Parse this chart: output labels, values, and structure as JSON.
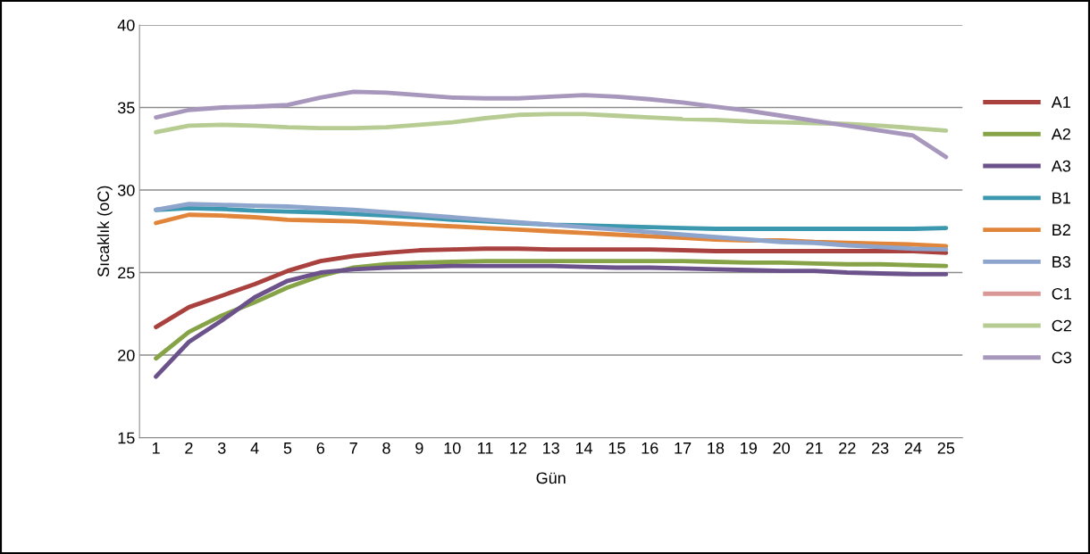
{
  "chart_data": {
    "type": "line",
    "xlabel": "Gün",
    "ylabel": "Sıcaklık (oC)",
    "categories": [
      "1",
      "2",
      "3",
      "4",
      "5",
      "6",
      "7",
      "8",
      "9",
      "10",
      "11",
      "12",
      "13",
      "14",
      "15",
      "16",
      "17",
      "18",
      "19",
      "20",
      "21",
      "22",
      "23",
      "24",
      "25"
    ],
    "ylim": [
      15,
      40
    ],
    "yticks": [
      15,
      20,
      25,
      30,
      35,
      40
    ],
    "grid": "y",
    "legend": "right",
    "marker": "none",
    "line_style": "solid",
    "series": [
      {
        "name": "A1",
        "color": "#a9413e",
        "values": [
          21.7,
          22.9,
          23.6,
          24.3,
          25.1,
          25.7,
          26.0,
          26.2,
          26.35,
          26.4,
          26.45,
          26.45,
          26.4,
          26.4,
          26.4,
          26.4,
          26.35,
          26.3,
          26.3,
          26.3,
          26.3,
          26.3,
          26.3,
          26.3,
          26.2
        ]
      },
      {
        "name": "A2",
        "color": "#87a347",
        "values": [
          19.8,
          21.4,
          22.4,
          23.2,
          24.1,
          24.8,
          25.3,
          25.5,
          25.6,
          25.65,
          25.7,
          25.7,
          25.7,
          25.7,
          25.7,
          25.7,
          25.7,
          25.65,
          25.6,
          25.6,
          25.55,
          25.5,
          25.5,
          25.45,
          25.4
        ]
      },
      {
        "name": "A3",
        "color": "#6b528a",
        "values": [
          18.7,
          20.8,
          22.1,
          23.5,
          24.5,
          25.0,
          25.2,
          25.3,
          25.35,
          25.4,
          25.4,
          25.4,
          25.4,
          25.35,
          25.3,
          25.3,
          25.25,
          25.2,
          25.15,
          25.1,
          25.1,
          25.0,
          24.95,
          24.9,
          24.9
        ]
      },
      {
        "name": "B1",
        "color": "#3c98ae",
        "values": [
          28.8,
          28.9,
          28.85,
          28.75,
          28.7,
          28.65,
          28.55,
          28.45,
          28.35,
          28.2,
          28.1,
          28.0,
          27.9,
          27.85,
          27.8,
          27.75,
          27.7,
          27.65,
          27.65,
          27.65,
          27.65,
          27.65,
          27.65,
          27.65,
          27.7
        ]
      },
      {
        "name": "B2",
        "color": "#e0853a",
        "values": [
          28.0,
          28.5,
          28.45,
          28.35,
          28.2,
          28.15,
          28.1,
          28.0,
          27.9,
          27.8,
          27.7,
          27.6,
          27.5,
          27.4,
          27.3,
          27.2,
          27.1,
          27.0,
          26.95,
          26.95,
          26.85,
          26.8,
          26.75,
          26.7,
          26.6
        ]
      },
      {
        "name": "B3",
        "color": "#8da5cc",
        "values": [
          28.8,
          29.15,
          29.1,
          29.05,
          29.0,
          28.9,
          28.8,
          28.65,
          28.5,
          28.35,
          28.2,
          28.05,
          27.9,
          27.75,
          27.6,
          27.45,
          27.3,
          27.15,
          27.0,
          26.85,
          26.8,
          26.65,
          26.55,
          26.45,
          26.4
        ]
      },
      {
        "name": "C1",
        "color": "#d99795",
        "values": [
          null,
          null,
          null,
          null,
          null,
          null,
          null,
          null,
          null,
          null,
          null,
          null,
          null,
          null,
          null,
          null,
          null,
          null,
          null,
          null,
          null,
          null,
          null,
          null,
          null
        ]
      },
      {
        "name": "C2",
        "color": "#b7cc93",
        "values": [
          33.5,
          33.9,
          33.95,
          33.9,
          33.8,
          33.75,
          33.75,
          33.8,
          33.95,
          34.1,
          34.35,
          34.55,
          34.6,
          34.6,
          34.5,
          34.4,
          34.3,
          34.25,
          34.15,
          34.1,
          34.05,
          34.0,
          33.9,
          33.75,
          33.6
        ]
      },
      {
        "name": "C3",
        "color": "#a797bc",
        "values": [
          34.4,
          34.85,
          35.0,
          35.05,
          35.15,
          35.6,
          35.95,
          35.9,
          35.75,
          35.6,
          35.55,
          35.55,
          35.65,
          35.75,
          35.65,
          35.5,
          35.3,
          35.05,
          34.8,
          34.5,
          34.2,
          33.9,
          33.6,
          33.3,
          32.0
        ]
      }
    ]
  }
}
